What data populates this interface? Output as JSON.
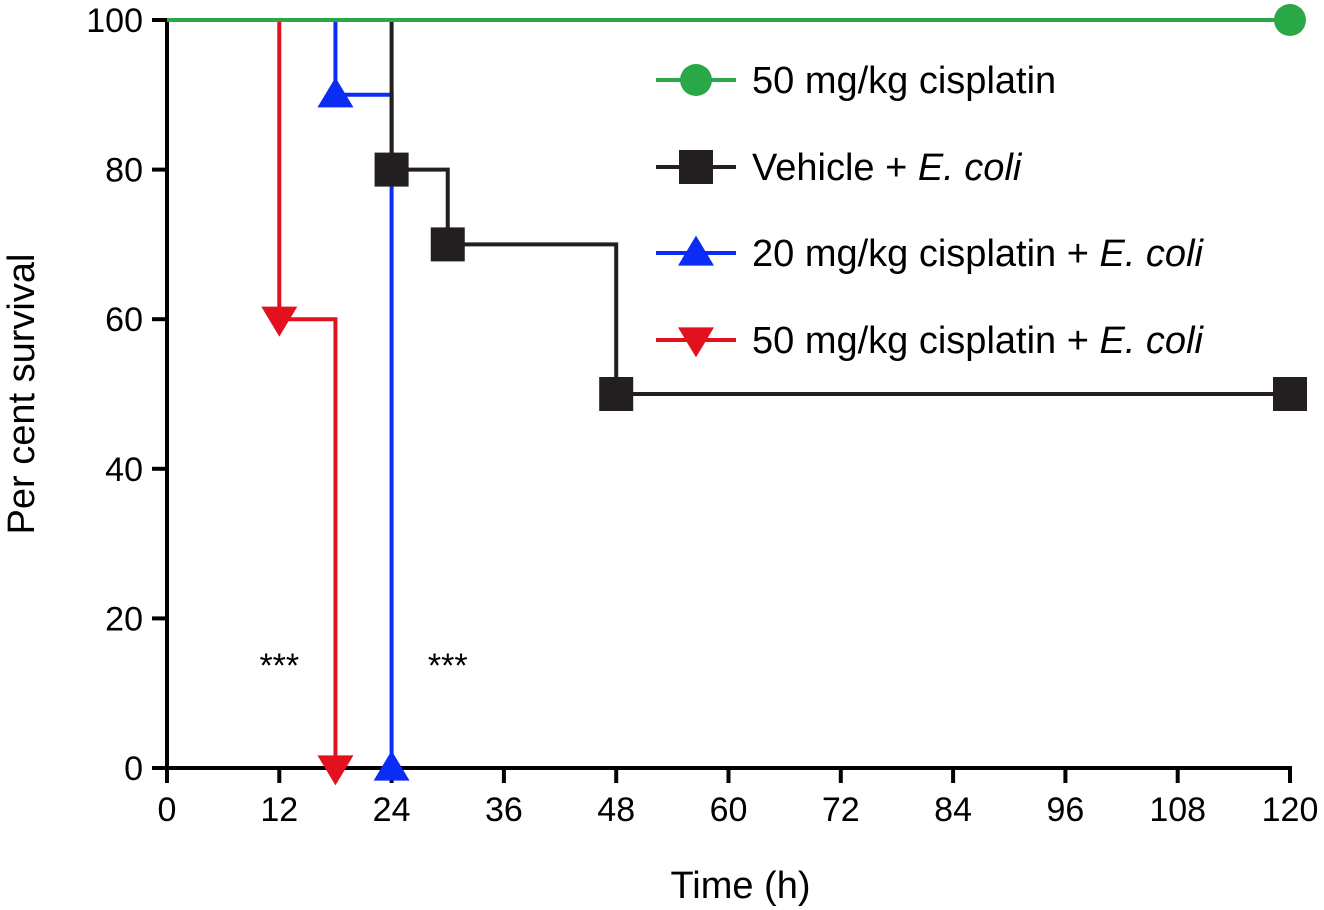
{
  "chart_data": {
    "type": "line",
    "xlabel": "Time (h)",
    "ylabel": "Per cent survival",
    "xlim": [
      0,
      120
    ],
    "ylim": [
      0,
      100
    ],
    "xticks": [
      0,
      12,
      24,
      36,
      48,
      60,
      72,
      84,
      96,
      108,
      120
    ],
    "yticks": [
      0,
      20,
      40,
      60,
      80,
      100
    ],
    "grid": false,
    "legend_position": "top-right",
    "step": true,
    "series": [
      {
        "name": "50 mg/kg cisplatin",
        "name_parts": [
          {
            "text": "50 mg/kg cisplatin",
            "italic": false
          }
        ],
        "color": "#2aa847",
        "marker": "circle",
        "steps": [
          {
            "x": 0,
            "y": 100
          },
          {
            "x": 120,
            "y": 100
          }
        ],
        "markers": [
          {
            "x": 120,
            "y": 100
          }
        ]
      },
      {
        "name": "Vehicle + E. coli",
        "name_parts": [
          {
            "text": "Vehicle + ",
            "italic": false
          },
          {
            "text": "E. coli",
            "italic": true
          }
        ],
        "color": "#231f20",
        "marker": "square",
        "steps": [
          {
            "x": 0,
            "y": 100
          },
          {
            "x": 24,
            "y": 80
          },
          {
            "x": 30,
            "y": 70
          },
          {
            "x": 48,
            "y": 50
          },
          {
            "x": 120,
            "y": 50
          }
        ],
        "markers": [
          {
            "x": 24,
            "y": 80
          },
          {
            "x": 30,
            "y": 70
          },
          {
            "x": 48,
            "y": 50
          },
          {
            "x": 120,
            "y": 50
          }
        ]
      },
      {
        "name": "20 mg/kg cisplatin + E. coli",
        "name_parts": [
          {
            "text": "20 mg/kg cisplatin + ",
            "italic": false
          },
          {
            "text": "E. coli",
            "italic": true
          }
        ],
        "color": "#0a2cf5",
        "marker": "triangle-up",
        "steps": [
          {
            "x": 0,
            "y": 100
          },
          {
            "x": 18,
            "y": 90
          },
          {
            "x": 24,
            "y": 0
          }
        ],
        "markers": [
          {
            "x": 18,
            "y": 90
          },
          {
            "x": 24,
            "y": 0
          }
        ]
      },
      {
        "name": "50 mg/kg cisplatin + E. coli",
        "name_parts": [
          {
            "text": "50 mg/kg cisplatin + ",
            "italic": false
          },
          {
            "text": "E. coli",
            "italic": true
          }
        ],
        "color": "#e3101d",
        "marker": "triangle-down",
        "steps": [
          {
            "x": 0,
            "y": 100
          },
          {
            "x": 12,
            "y": 60
          },
          {
            "x": 18,
            "y": 0
          }
        ],
        "markers": [
          {
            "x": 12,
            "y": 60
          },
          {
            "x": 18,
            "y": 0
          }
        ]
      }
    ],
    "annotations": [
      {
        "text": "***",
        "x": 12
      },
      {
        "text": "***",
        "x": 30
      }
    ]
  }
}
